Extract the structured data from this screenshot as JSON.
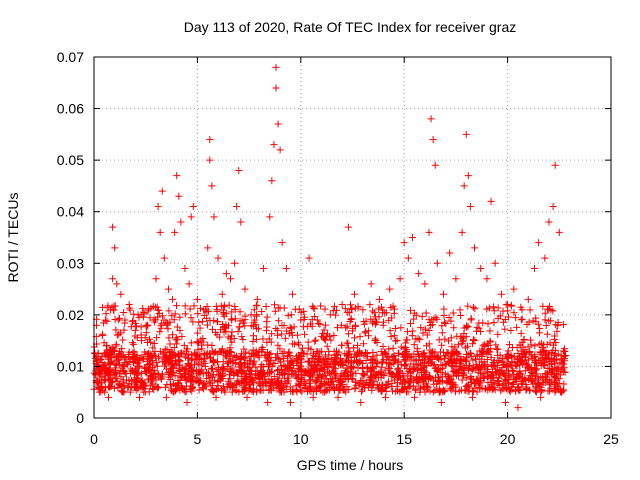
{
  "chart_data": {
    "type": "scatter",
    "title": "Day 113 of 2020, Rate Of TEC Index for receiver graz",
    "xlabel": "GPS time / hours",
    "ylabel": "ROTI / TECUs",
    "xlim": [
      0,
      25
    ],
    "ylim": [
      0,
      0.07
    ],
    "xticks": [
      0,
      5,
      10,
      15,
      20,
      25
    ],
    "xtick_labels": [
      "0",
      "5",
      "10",
      "15",
      "20",
      "25"
    ],
    "yticks": [
      0,
      0.01,
      0.02,
      0.03,
      0.04,
      0.05,
      0.06,
      0.07
    ],
    "ytick_labels": [
      "0",
      "0.01",
      "0.02",
      "0.03",
      "0.04",
      "0.05",
      "0.06",
      "0.07"
    ],
    "grid": true,
    "legend": "none",
    "marker": "plus",
    "color": "#ff0000",
    "data_x_range": [
      0,
      22.8
    ],
    "series": [
      {
        "points": [
          [
            0.1,
            0.011
          ],
          [
            0.4,
            0.016
          ],
          [
            0.6,
            0.014
          ],
          [
            0.8,
            0.021
          ],
          [
            0.9,
            0.027
          ],
          [
            0.9,
            0.037
          ],
          [
            1.0,
            0.033
          ],
          [
            1.1,
            0.026
          ],
          [
            1.3,
            0.024
          ],
          [
            1.5,
            0.019
          ],
          [
            1.7,
            0.022
          ],
          [
            2.0,
            0.017
          ],
          [
            2.3,
            0.015
          ],
          [
            2.6,
            0.018
          ],
          [
            2.9,
            0.019
          ],
          [
            3.0,
            0.027
          ],
          [
            3.1,
            0.041
          ],
          [
            3.2,
            0.036
          ],
          [
            3.3,
            0.044
          ],
          [
            3.4,
            0.031
          ],
          [
            3.6,
            0.025
          ],
          [
            3.8,
            0.023
          ],
          [
            3.9,
            0.036
          ],
          [
            4.0,
            0.047
          ],
          [
            4.1,
            0.043
          ],
          [
            4.2,
            0.038
          ],
          [
            4.4,
            0.029
          ],
          [
            4.6,
            0.026
          ],
          [
            4.7,
            0.039
          ],
          [
            4.8,
            0.041
          ],
          [
            5.0,
            0.023
          ],
          [
            5.3,
            0.021
          ],
          [
            5.5,
            0.033
          ],
          [
            5.6,
            0.054
          ],
          [
            5.6,
            0.05
          ],
          [
            5.7,
            0.045
          ],
          [
            5.8,
            0.039
          ],
          [
            6.0,
            0.031
          ],
          [
            6.2,
            0.024
          ],
          [
            6.4,
            0.028
          ],
          [
            6.6,
            0.027
          ],
          [
            6.8,
            0.03
          ],
          [
            6.9,
            0.041
          ],
          [
            7.0,
            0.048
          ],
          [
            7.1,
            0.038
          ],
          [
            7.3,
            0.025
          ],
          [
            7.6,
            0.02
          ],
          [
            7.9,
            0.023
          ],
          [
            8.2,
            0.029
          ],
          [
            8.5,
            0.039
          ],
          [
            8.6,
            0.046
          ],
          [
            8.7,
            0.053
          ],
          [
            8.8,
            0.068
          ],
          [
            8.8,
            0.064
          ],
          [
            8.9,
            0.057
          ],
          [
            9.0,
            0.052
          ],
          [
            9.1,
            0.034
          ],
          [
            9.3,
            0.029
          ],
          [
            9.6,
            0.024
          ],
          [
            10.0,
            0.019
          ],
          [
            10.4,
            0.031
          ],
          [
            10.8,
            0.019
          ],
          [
            11.2,
            0.018
          ],
          [
            11.6,
            0.016
          ],
          [
            12.0,
            0.022
          ],
          [
            12.3,
            0.037
          ],
          [
            12.6,
            0.024
          ],
          [
            13.0,
            0.021
          ],
          [
            13.4,
            0.026
          ],
          [
            13.8,
            0.023
          ],
          [
            14.3,
            0.025
          ],
          [
            14.8,
            0.027
          ],
          [
            15.0,
            0.034
          ],
          [
            15.2,
            0.031
          ],
          [
            15.4,
            0.035
          ],
          [
            15.7,
            0.028
          ],
          [
            16.0,
            0.026
          ],
          [
            16.2,
            0.036
          ],
          [
            16.3,
            0.058
          ],
          [
            16.4,
            0.054
          ],
          [
            16.5,
            0.049
          ],
          [
            16.6,
            0.03
          ],
          [
            16.9,
            0.024
          ],
          [
            17.2,
            0.032
          ],
          [
            17.5,
            0.027
          ],
          [
            17.8,
            0.036
          ],
          [
            17.9,
            0.045
          ],
          [
            18.0,
            0.055
          ],
          [
            18.1,
            0.047
          ],
          [
            18.2,
            0.041
          ],
          [
            18.4,
            0.033
          ],
          [
            18.7,
            0.029
          ],
          [
            19.0,
            0.027
          ],
          [
            19.2,
            0.042
          ],
          [
            19.4,
            0.03
          ],
          [
            19.7,
            0.024
          ],
          [
            20.0,
            0.022
          ],
          [
            20.3,
            0.025
          ],
          [
            20.7,
            0.021
          ],
          [
            21.0,
            0.023
          ],
          [
            21.3,
            0.029
          ],
          [
            21.5,
            0.034
          ],
          [
            21.8,
            0.031
          ],
          [
            22.0,
            0.038
          ],
          [
            22.2,
            0.041
          ],
          [
            22.3,
            0.049
          ],
          [
            22.5,
            0.036
          ],
          [
            22.7,
            0.013
          ],
          [
            0.2,
            0.006
          ],
          [
            0.7,
            0.004
          ],
          [
            1.4,
            0.005
          ],
          [
            2.2,
            0.004
          ],
          [
            3.5,
            0.004
          ],
          [
            4.5,
            0.003
          ],
          [
            5.9,
            0.004
          ],
          [
            7.4,
            0.004
          ],
          [
            8.4,
            0.003
          ],
          [
            9.5,
            0.003
          ],
          [
            10.6,
            0.004
          ],
          [
            11.8,
            0.004
          ],
          [
            12.9,
            0.003
          ],
          [
            14.1,
            0.004
          ],
          [
            15.5,
            0.004
          ],
          [
            16.8,
            0.003
          ],
          [
            18.3,
            0.004
          ],
          [
            19.9,
            0.003
          ],
          [
            20.5,
            0.002
          ],
          [
            21.6,
            0.004
          ],
          [
            22.6,
            0.005
          ]
        ],
        "dense_band": {
          "x_range": [
            0,
            22.8
          ],
          "core_y_range": [
            0.005,
            0.013
          ],
          "upper_spread": 0.022
        }
      }
    ]
  }
}
